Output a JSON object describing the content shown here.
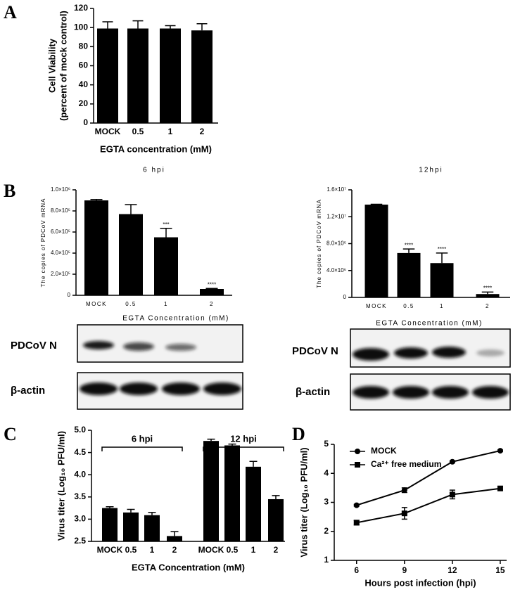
{
  "panel_labels": [
    "A",
    "B",
    "C",
    "D"
  ],
  "chart_data": [
    {
      "type": "bar",
      "y_label": [
        "Cell Viability",
        "(percent of mock control)"
      ],
      "x_label": "EGTA concentration (mM)",
      "categories": [
        "MOCK",
        "0.5",
        "1",
        "2"
      ],
      "values": [
        99,
        99,
        99,
        97
      ],
      "errors": [
        7,
        8,
        3,
        7
      ],
      "color": "#000000",
      "ylim": [
        0,
        120
      ],
      "yticks": [
        0,
        20,
        40,
        60,
        80,
        100,
        120
      ]
    },
    {
      "type": "bar",
      "title": "6 hpi",
      "y_label": "The copies of PDCoV mRNA",
      "categories": [
        "MOCK",
        "0.5",
        "1",
        "2"
      ],
      "values": [
        900000,
        770000,
        550000,
        60000
      ],
      "errors": [
        8000,
        90000,
        85000,
        5000
      ],
      "annotations": [
        null,
        null,
        "***",
        "****"
      ],
      "color": "#000000",
      "ylim": [
        0,
        1000000
      ],
      "yticks": [
        0,
        {
          "value": 200000,
          "label": "2.0×10⁵"
        },
        {
          "value": 400000,
          "label": "4.0×10⁵"
        },
        {
          "value": 600000,
          "label": "6.0×10⁵"
        },
        {
          "value": 800000,
          "label": "8.0×10⁵"
        },
        {
          "value": 1000000,
          "label": "1.0×10⁶"
        }
      ]
    },
    {
      "type": "bar",
      "title": "12hpi",
      "y_label": "The copies of PDCoV mRNA",
      "categories": [
        "MOCK",
        "0.5",
        "1",
        "2"
      ],
      "values": [
        13800000,
        6600000,
        5100000,
        500000
      ],
      "errors": [
        50000,
        600000,
        1500000,
        300000
      ],
      "annotations": [
        null,
        "****",
        "****",
        "****"
      ],
      "color": "#000000",
      "ylim": [
        0,
        16000000
      ],
      "yticks": [
        0,
        {
          "value": 4000000,
          "label": "4.0×10⁶"
        },
        {
          "value": 8000000,
          "label": "8.0×10⁶"
        },
        {
          "value": 12000000,
          "label": "1.2×10⁷"
        },
        {
          "value": 16000000,
          "label": "1.6×10⁷"
        }
      ]
    },
    {
      "type": "grouped-bar",
      "y_label": "Virus titer (Log₁₀ PFU/ml)",
      "x_label": "EGTA Concentration (mM)",
      "color": "#000000",
      "groups": [
        {
          "name": "6 hpi",
          "categories": [
            "MOCK",
            "0.5",
            "1",
            "2"
          ],
          "values": [
            3.25,
            3.15,
            3.09,
            2.62
          ],
          "errors": [
            0.03,
            0.07,
            0.06,
            0.1
          ]
        },
        {
          "name": "12 hpi",
          "categories": [
            "MOCK",
            "0.5",
            "1",
            "2"
          ],
          "values": [
            4.76,
            4.66,
            4.18,
            3.45
          ],
          "errors": [
            0.04,
            0.03,
            0.12,
            0.08
          ]
        }
      ],
      "ylim": [
        2.5,
        5.0
      ],
      "yticks": [
        2.5,
        {
          "value": 3,
          "label": "3.0"
        },
        3.5,
        {
          "value": 4,
          "label": "4.0"
        },
        4.5,
        {
          "value": 5,
          "label": "5.0"
        }
      ]
    },
    {
      "type": "line",
      "y_label": "Virus titer (Log₁₀ PFU/ml)",
      "x_label": "Hours post infection (hpi)",
      "x": [
        6,
        9,
        12,
        15
      ],
      "xlim": [
        4.6,
        15.4
      ],
      "xticks": [
        6,
        9,
        12,
        15
      ],
      "ylim": [
        1,
        5
      ],
      "yticks": [
        1,
        2,
        3,
        4,
        5
      ],
      "legend": "top-left",
      "series": [
        {
          "name": "MOCK",
          "color": "#000000",
          "marker": "circle",
          "values": [
            2.9,
            3.42,
            4.4,
            4.78
          ],
          "errors": [
            0.03,
            0.08,
            0.03,
            0.03
          ]
        },
        {
          "name": "Ca²⁺ free medium",
          "color": "#000000",
          "marker": "square",
          "values": [
            2.3,
            2.62,
            3.27,
            3.48
          ],
          "errors": [
            0.08,
            0.2,
            0.15,
            0.06
          ]
        }
      ]
    }
  ],
  "blots": [
    {
      "header": "EGTA Concentration (mM)",
      "rows": [
        "PDCoV N",
        "β-actin"
      ]
    },
    {
      "header": "EGTA Concentration (mM)",
      "rows": [
        "PDCoV N",
        "β-actin"
      ]
    }
  ]
}
